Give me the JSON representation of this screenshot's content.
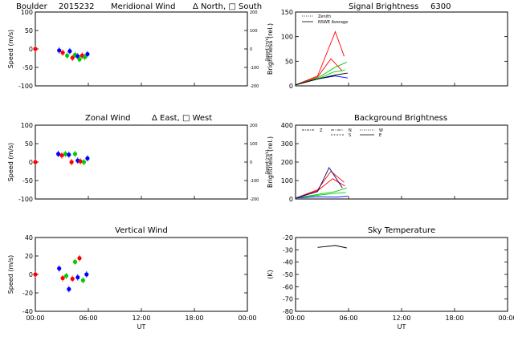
{
  "chart_data": [
    {
      "type": "scatter",
      "title_parts": [
        "Boulder",
        "2015232",
        "Meridional Wind",
        "Δ North, □ South"
      ],
      "xlabel": "",
      "ylabel": "Speed (m/s)",
      "ylabel_right": "Speed (m/s)",
      "xlim": [
        0,
        24
      ],
      "ylim": [
        -100,
        100
      ],
      "yticks": [
        "100",
        "50",
        "0",
        "-50",
        "-100"
      ],
      "yticks_right": [
        "200",
        "100",
        "0",
        "-100",
        "-200"
      ],
      "grid": false,
      "points": [
        {
          "x": 0.0,
          "y": 0,
          "color": "#ff0000"
        },
        {
          "x": 2.7,
          "y": -4,
          "color": "#0000ff"
        },
        {
          "x": 3.1,
          "y": -10,
          "color": "#ff0000"
        },
        {
          "x": 3.6,
          "y": -18,
          "color": "#00cc00"
        },
        {
          "x": 3.9,
          "y": -6,
          "color": "#0000ff"
        },
        {
          "x": 4.2,
          "y": -24,
          "color": "#ff0000"
        },
        {
          "x": 4.5,
          "y": -16,
          "color": "#00cc00"
        },
        {
          "x": 4.8,
          "y": -20,
          "color": "#0000ff"
        },
        {
          "x": 5.0,
          "y": -28,
          "color": "#00cc00"
        },
        {
          "x": 5.3,
          "y": -18,
          "color": "#ff0000"
        },
        {
          "x": 5.6,
          "y": -22,
          "color": "#00cc00"
        },
        {
          "x": 5.9,
          "y": -14,
          "color": "#0000ff"
        }
      ]
    },
    {
      "type": "line",
      "title_parts": [
        "Signal Brightness",
        "6300"
      ],
      "xlabel": "",
      "ylabel": "Brightness (rel.)",
      "xlim": [
        0,
        24
      ],
      "ylim": [
        0,
        150
      ],
      "yticks": [
        "150",
        "100",
        "50",
        "0"
      ],
      "legend": [
        "Zenith",
        "NSWE Average"
      ],
      "legend_position": "top-left",
      "series": [
        {
          "color": "#ff0000",
          "x": [
            0,
            2.5,
            4.5,
            5.5
          ],
          "y": [
            2,
            20,
            110,
            60
          ]
        },
        {
          "color": "#ff0000",
          "x": [
            0,
            2.5,
            4.0,
            5.3
          ],
          "y": [
            2,
            18,
            55,
            30
          ]
        },
        {
          "color": "#00cc00",
          "x": [
            0,
            2.5,
            4.5,
            5.8
          ],
          "y": [
            2,
            16,
            38,
            48
          ]
        },
        {
          "color": "#00cc00",
          "x": [
            0,
            2.5,
            4.3,
            5.6
          ],
          "y": [
            2,
            14,
            28,
            32
          ]
        },
        {
          "color": "#0000ff",
          "x": [
            0,
            2.5,
            4.5,
            5.9
          ],
          "y": [
            2,
            14,
            20,
            16
          ]
        },
        {
          "color": "#000000",
          "x": [
            0,
            2.5,
            4.5,
            5.9
          ],
          "y": [
            2,
            14,
            22,
            26
          ]
        }
      ]
    },
    {
      "type": "scatter",
      "title_parts": [
        "Zonal Wind",
        "Δ East, □ West"
      ],
      "xlabel": "",
      "ylabel": "Speed (m/s)",
      "ylabel_right": "Speed (m/s)",
      "xlim": [
        0,
        24
      ],
      "ylim": [
        -100,
        100
      ],
      "yticks": [
        "100",
        "50",
        "0",
        "-50",
        "-100"
      ],
      "yticks_right": [
        "200",
        "100",
        "0",
        "-100",
        "-200"
      ],
      "grid": false,
      "points": [
        {
          "x": 0.0,
          "y": 0,
          "color": "#ff0000"
        },
        {
          "x": 2.6,
          "y": 22,
          "color": "#0000ff"
        },
        {
          "x": 3.0,
          "y": 18,
          "color": "#ff0000"
        },
        {
          "x": 3.4,
          "y": 22,
          "color": "#00cc00"
        },
        {
          "x": 3.8,
          "y": 20,
          "color": "#0000ff"
        },
        {
          "x": 4.1,
          "y": 0,
          "color": "#ff0000"
        },
        {
          "x": 4.5,
          "y": 22,
          "color": "#00cc00"
        },
        {
          "x": 4.8,
          "y": 4,
          "color": "#0000ff"
        },
        {
          "x": 5.1,
          "y": 2,
          "color": "#ff0000"
        },
        {
          "x": 5.5,
          "y": 0,
          "color": "#00cc00"
        },
        {
          "x": 5.9,
          "y": 10,
          "color": "#0000ff"
        }
      ]
    },
    {
      "type": "line",
      "title_parts": [
        "Background Brightness"
      ],
      "xlabel": "",
      "ylabel": "Brightness (rel.)",
      "xlim": [
        0,
        24
      ],
      "ylim": [
        0,
        400
      ],
      "yticks": [
        "400",
        "300",
        "200",
        "100",
        "0"
      ],
      "legend": [
        "Z",
        "N",
        "S",
        "W",
        "E"
      ],
      "legend_position": "top-left",
      "series": [
        {
          "color": "#ff0000",
          "x": [
            0,
            2.5,
            4.0,
            5.5
          ],
          "y": [
            5,
            50,
            150,
            90
          ]
        },
        {
          "color": "#ff0000",
          "x": [
            0,
            2.5,
            4.2,
            5.6
          ],
          "y": [
            5,
            45,
            110,
            70
          ]
        },
        {
          "color": "#000080",
          "x": [
            0,
            2.5,
            3.8,
            5.3
          ],
          "y": [
            5,
            40,
            170,
            60
          ]
        },
        {
          "color": "#00cc00",
          "x": [
            0,
            2.5,
            4.5,
            5.8
          ],
          "y": [
            5,
            25,
            40,
            60
          ]
        },
        {
          "color": "#00cc00",
          "x": [
            0,
            2.5,
            4.3,
            5.7
          ],
          "y": [
            5,
            20,
            30,
            35
          ]
        },
        {
          "color": "#0000ff",
          "x": [
            0,
            2.5,
            4.5,
            5.9
          ],
          "y": [
            5,
            12,
            10,
            15
          ]
        }
      ]
    },
    {
      "type": "scatter",
      "title_parts": [
        "Vertical Wind"
      ],
      "xlabel": "UT",
      "ylabel": "Speed (m/s)",
      "xlim": [
        0,
        24
      ],
      "ylim": [
        -50,
        50
      ],
      "yticks": [
        "40",
        "20",
        "0",
        "-20",
        "-40"
      ],
      "xticks": [
        "00:00",
        "06:00",
        "12:00",
        "18:00",
        "00:00"
      ],
      "grid": false,
      "points": [
        {
          "x": 0.0,
          "y": 0,
          "color": "#ff0000"
        },
        {
          "x": 2.7,
          "y": 8,
          "color": "#0000ff"
        },
        {
          "x": 3.1,
          "y": -5,
          "color": "#ff0000"
        },
        {
          "x": 3.5,
          "y": -2,
          "color": "#00cc00"
        },
        {
          "x": 3.8,
          "y": -20,
          "color": "#0000ff"
        },
        {
          "x": 4.2,
          "y": -6,
          "color": "#ff0000"
        },
        {
          "x": 4.5,
          "y": 17,
          "color": "#00cc00"
        },
        {
          "x": 4.8,
          "y": -4,
          "color": "#0000ff"
        },
        {
          "x": 5.0,
          "y": 22,
          "color": "#ff0000"
        },
        {
          "x": 5.4,
          "y": -8,
          "color": "#00cc00"
        },
        {
          "x": 5.8,
          "y": 0,
          "color": "#0000ff"
        }
      ]
    },
    {
      "type": "line",
      "title_parts": [
        "Sky Temperature"
      ],
      "xlabel": "UT",
      "ylabel": "(K)",
      "xlim": [
        0,
        24
      ],
      "ylim": [
        -80,
        -20
      ],
      "yticks": [
        "-20",
        "-30",
        "-40",
        "-50",
        "-60",
        "-70",
        "-80"
      ],
      "xticks": [
        "00:00",
        "06:00",
        "12:00",
        "18:00",
        "00:00"
      ],
      "series": [
        {
          "color": "#000000",
          "x": [
            2.5,
            4.5,
            5.8
          ],
          "y": [
            -28,
            -26.5,
            -28.5
          ]
        }
      ]
    }
  ]
}
